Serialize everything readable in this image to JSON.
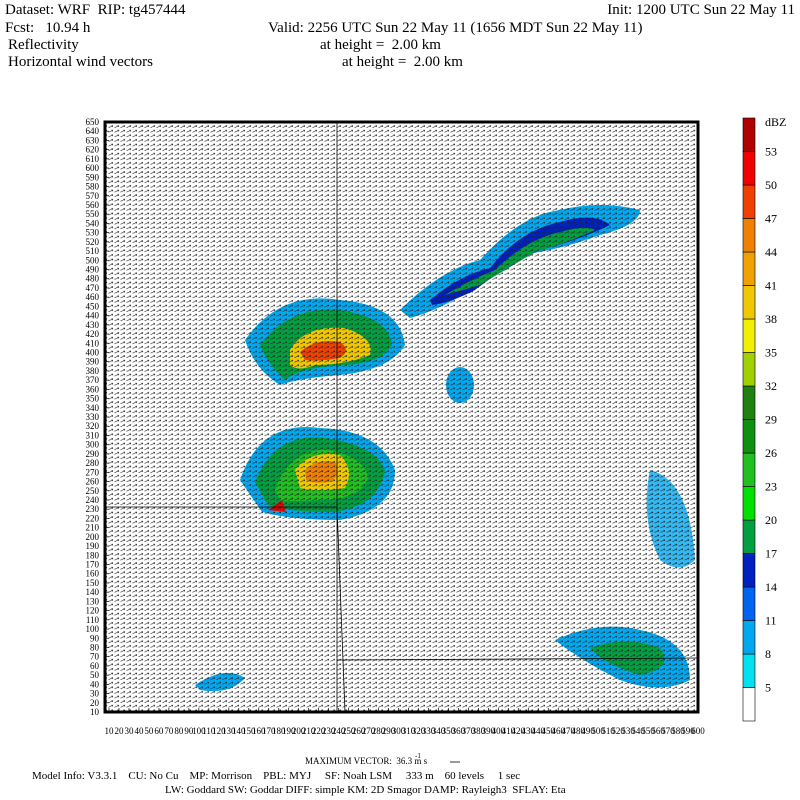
{
  "header": {
    "dataset": "Dataset: WRF  RIP: tg457444",
    "init": "Init: 1200 UTC Sun 22 May 11",
    "fcst": "Fcst:   10.94 h",
    "valid": "Valid: 2256 UTC Sun 22 May 11 (1656 MDT Sun 22 May 11)",
    "field1": "Reflectivity",
    "height1": "at height =  2.00 km",
    "field2": "Horizontal wind vectors",
    "height2": "at height =  2.00 km"
  },
  "colorbar": {
    "unit": "dBZ",
    "levels": [
      5,
      8,
      11,
      14,
      17,
      20,
      23,
      26,
      29,
      32,
      35,
      38,
      41,
      44,
      47,
      50,
      53
    ],
    "colors": [
      "#ffffff",
      "#00e0f0",
      "#00a8f0",
      "#0064f0",
      "#0020c0",
      "#00a040",
      "#00e000",
      "#20c020",
      "#109010",
      "#208010",
      "#a0d000",
      "#f0f000",
      "#f0c800",
      "#f0a000",
      "#f08000",
      "#f04000",
      "#f00000",
      "#b00000"
    ]
  },
  "axes": {
    "yticks": [
      10,
      20,
      30,
      40,
      50,
      60,
      70,
      80,
      90,
      100,
      110,
      120,
      130,
      140,
      150,
      160,
      170,
      180,
      190,
      200,
      210,
      220,
      230,
      240,
      250,
      260,
      270,
      280,
      290,
      300,
      310,
      320,
      330,
      340,
      350,
      360,
      370,
      380,
      390,
      400,
      410,
      420,
      430,
      440,
      450,
      460,
      470,
      480,
      490,
      500,
      510,
      520,
      530,
      540,
      550,
      560,
      570,
      580,
      590,
      600,
      610,
      620,
      630,
      640,
      650
    ],
    "xticks": [
      10,
      20,
      30,
      40,
      50,
      60,
      70,
      80,
      90,
      100,
      110,
      120,
      130,
      140,
      150,
      160,
      170,
      180,
      190,
      200,
      210,
      220,
      230,
      240,
      250,
      260,
      270,
      280,
      290,
      300,
      310,
      320,
      330,
      340,
      350,
      360,
      370,
      380,
      390,
      400,
      410,
      420,
      430,
      440,
      450,
      460,
      470,
      480,
      490,
      500,
      510,
      520,
      530,
      540,
      550,
      560,
      570,
      580,
      590,
      600
    ],
    "ylim": [
      10,
      650
    ],
    "xlim": [
      10,
      600
    ]
  },
  "footer": {
    "max_vector": "MAXIMUM VECTOR:  36.3 m s",
    "exponent": "-1",
    "model_info": "Model Info: V3.3.1    CU: No Cu    MP: Morrison    PBL: MYJ     SF: Noah LSM     333 m    60 levels     1 sec",
    "physics": "LW: Goddard SW: Goddar DIFF: simple KM: 2D Smagor DAMP: Rayleigh3  SFLAY: Eta"
  }
}
